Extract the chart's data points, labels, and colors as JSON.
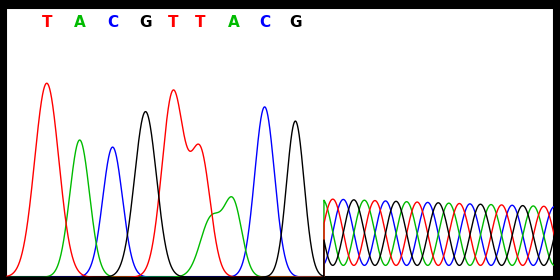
{
  "background_color": "#ffffff",
  "outer_background": "#000000",
  "bases": [
    "T",
    "A",
    "C",
    "G",
    "T",
    "T",
    "A",
    "C",
    "G"
  ],
  "base_colors": [
    "#ff0000",
    "#00bb00",
    "#0000ff",
    "#000000",
    "#ff0000",
    "#ff0000",
    "#00bb00",
    "#0000ff",
    "#000000"
  ],
  "line_colors": {
    "red": "#ff0000",
    "green": "#00bb00",
    "blue": "#0000ff",
    "black": "#000000"
  },
  "label_fontsize": 11,
  "figsize": [
    5.6,
    2.8
  ],
  "dpi": 100
}
